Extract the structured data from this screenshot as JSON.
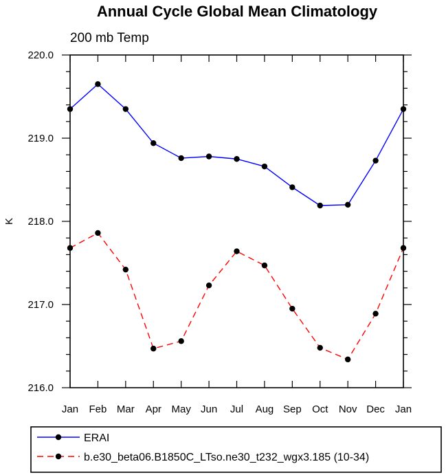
{
  "chart_data": {
    "type": "line",
    "title": "Annual Cycle Global Mean Climatology",
    "subtitle": "200 mb Temp",
    "xlabel": "",
    "ylabel": "K",
    "categories": [
      "Jan",
      "Feb",
      "Mar",
      "Apr",
      "May",
      "Jun",
      "Jul",
      "Aug",
      "Sep",
      "Oct",
      "Nov",
      "Dec",
      "Jan"
    ],
    "ylim": [
      216.0,
      220.0
    ],
    "yticks": [
      "216.0",
      "217.0",
      "218.0",
      "219.0",
      "220.0"
    ],
    "grid": false,
    "legend_position": "bottom",
    "series": [
      {
        "name": "ERAI",
        "color": "#0000ff",
        "dash": "solid",
        "values": [
          219.35,
          219.65,
          219.35,
          218.94,
          218.76,
          218.78,
          218.75,
          218.66,
          218.41,
          218.19,
          218.2,
          218.73,
          219.35
        ]
      },
      {
        "name": "b.e30_beta06.B1850C_LTso.ne30_t232_wgx3.185 (10-34)",
        "color": "#ff0000",
        "dash": "dashed",
        "values": [
          217.68,
          217.86,
          217.42,
          216.47,
          216.56,
          217.23,
          217.64,
          217.47,
          216.95,
          216.48,
          216.34,
          216.89,
          217.68
        ]
      }
    ]
  }
}
